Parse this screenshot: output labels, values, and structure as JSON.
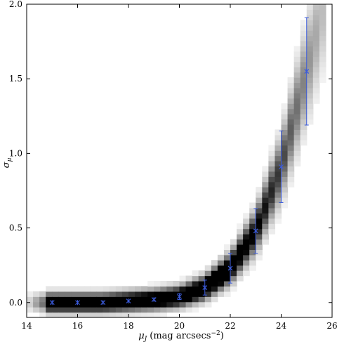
{
  "chart_data": {
    "type": "scatter",
    "xlabel": "μ",
    "xlabel_sub": "J",
    "xlabel_units": "(mag arcsecs",
    "xlabel_sup": "−2",
    "xlabel_close": ")",
    "ylabel": "σ",
    "ylabel_sub": "μ",
    "xlim": [
      14,
      26
    ],
    "ylim": [
      -0.1,
      2.0
    ],
    "xticks": [
      "14",
      "16",
      "18",
      "20",
      "22",
      "24",
      "26"
    ],
    "xtick_values": [
      14,
      16,
      18,
      20,
      22,
      24,
      26
    ],
    "yticks": [
      "0.0",
      "0.5",
      "1.0",
      "1.5",
      "2.0"
    ],
    "ytick_values": [
      0.0,
      0.5,
      1.0,
      1.5,
      2.0
    ],
    "background": "2D density histogram in grayscale",
    "marker_color": "#3b5bdb",
    "points": [
      {
        "x": 15,
        "y": 0.0,
        "err": 0.0
      },
      {
        "x": 16,
        "y": 0.0,
        "err": 0.0
      },
      {
        "x": 17,
        "y": 0.0,
        "err": 0.0
      },
      {
        "x": 18,
        "y": 0.01,
        "err": 0.0
      },
      {
        "x": 19,
        "y": 0.02,
        "err": 0.0
      },
      {
        "x": 20,
        "y": 0.04,
        "err": 0.02
      },
      {
        "x": 21,
        "y": 0.1,
        "err": 0.05
      },
      {
        "x": 22,
        "y": 0.23,
        "err": 0.1
      },
      {
        "x": 23,
        "y": 0.48,
        "err": 0.15
      },
      {
        "x": 24,
        "y": 0.91,
        "err": 0.24
      },
      {
        "x": 25,
        "y": 1.55,
        "err": 0.36
      }
    ]
  }
}
